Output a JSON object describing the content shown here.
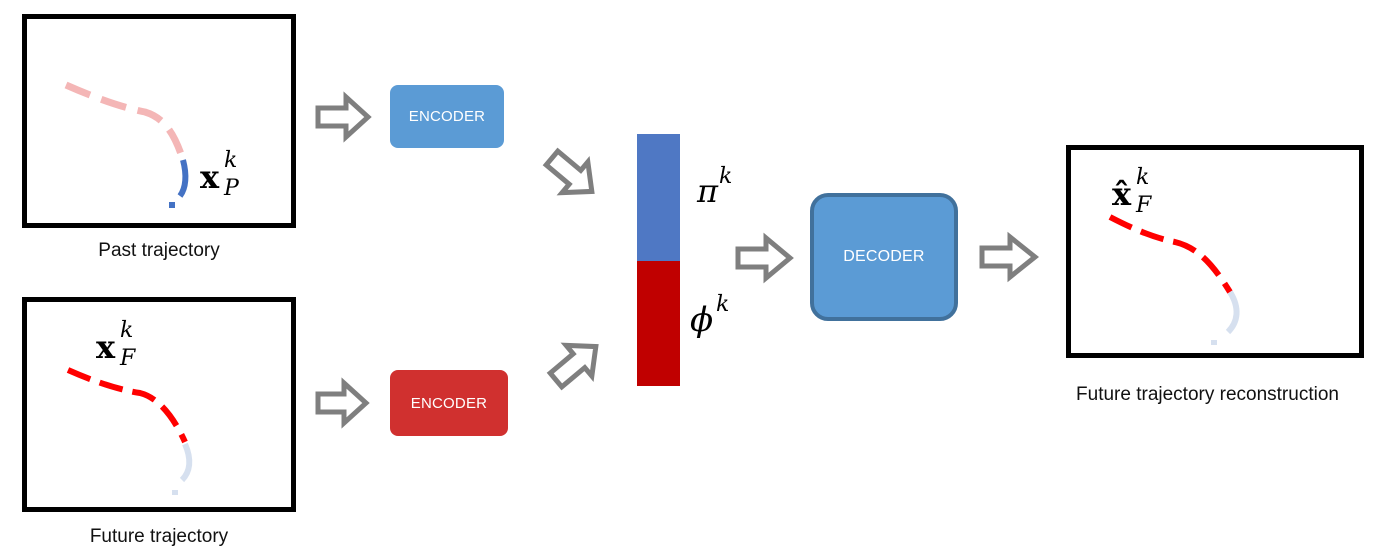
{
  "colors": {
    "encoder_blue": "#5b9bd5",
    "encoder_red": "#d0302f",
    "decoder_fill": "#5b9bd5",
    "decoder_border": "#41719c",
    "latent_pi": "#4f78c4",
    "latent_phi": "#c00000",
    "arrow": "#7f7f7f",
    "past_faded": "#f4b6b6",
    "past_active": "#4472c4",
    "future_active": "#ff0000",
    "future_faded": "#d6e0ef"
  },
  "captions": {
    "past": "Past trajectory",
    "future": "Future trajectory",
    "reconstruction": "Future trajectory reconstruction"
  },
  "blocks": {
    "encoder_past": "ENCODER",
    "encoder_future": "ENCODER",
    "decoder": "DECODER"
  },
  "math": {
    "x_past": {
      "base": "x",
      "sup": "k",
      "sub": "P"
    },
    "x_future": {
      "base": "x",
      "sup": "k",
      "sub": "F"
    },
    "x_hat_future": {
      "base": "x̂",
      "sup": "k",
      "sub": "F"
    },
    "pi": {
      "base": "π",
      "sup": "k"
    },
    "phi": {
      "base": "ϕ",
      "sup": "k"
    }
  },
  "icons": [
    "hollow-right-arrow",
    "hollow-diagonal-arrow"
  ]
}
